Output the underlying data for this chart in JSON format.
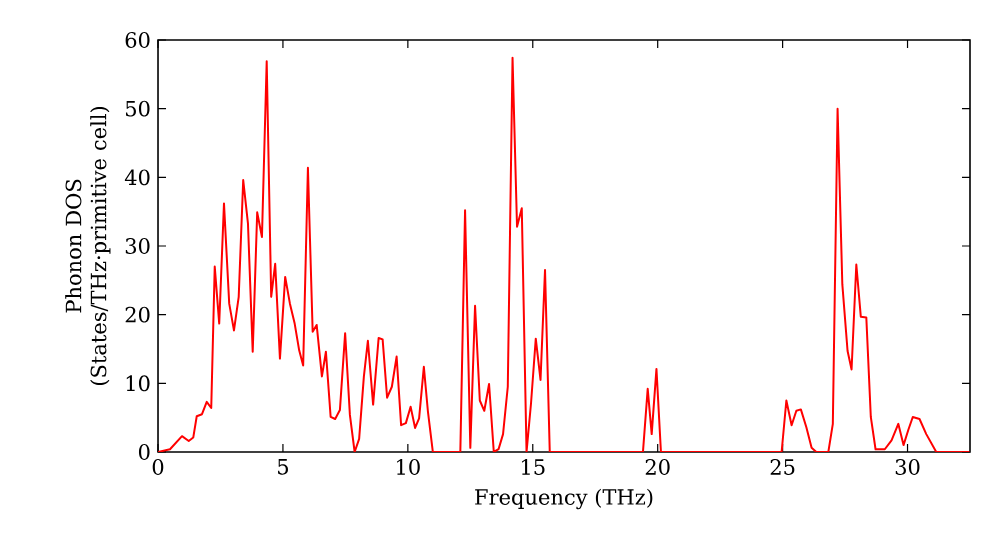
{
  "chart_data": {
    "type": "line",
    "xlabel": "Frequency (THz)",
    "ylabel": "Phonon DOS\n(States/THz·primitive cell)",
    "xlim": [
      0,
      32.5
    ],
    "ylim": [
      0,
      60
    ],
    "xticks": [
      0,
      5,
      10,
      15,
      20,
      25,
      30
    ],
    "yticks": [
      0,
      10,
      20,
      30,
      40,
      50,
      60
    ],
    "grid": false,
    "series": [
      {
        "color": "#ff0000",
        "x": [
          0,
          0.48,
          0.96,
          1.23,
          1.41,
          1.55,
          1.76,
          1.95,
          2.13,
          2.27,
          2.45,
          2.64,
          2.85,
          3.04,
          3.23,
          3.41,
          3.6,
          3.79,
          3.97,
          4.16,
          4.35,
          4.53,
          4.69,
          4.88,
          5.09,
          5.28,
          5.47,
          5.65,
          5.81,
          6.0,
          6.19,
          6.35,
          6.56,
          6.72,
          6.91,
          7.09,
          7.28,
          7.49,
          7.68,
          7.87,
          8.05,
          8.24,
          8.4,
          8.61,
          8.83,
          8.99,
          9.17,
          9.36,
          9.55,
          9.73,
          9.92,
          10.11,
          10.29,
          10.45,
          10.64,
          10.8,
          11.0,
          12.1,
          12.29,
          12.5,
          12.69,
          12.88,
          13.06,
          13.25,
          13.44,
          13.63,
          13.81,
          14.0,
          14.19,
          14.37,
          14.56,
          14.75,
          14.93,
          15.12,
          15.31,
          15.49,
          15.68,
          19.41,
          19.6,
          19.76,
          19.95,
          20.13,
          24.96,
          25.15,
          25.36,
          25.55,
          25.73,
          25.95,
          26.16,
          26.35,
          26.83,
          27.01,
          27.2,
          27.39,
          27.6,
          27.76,
          27.95,
          28.13,
          28.35,
          28.53,
          28.72,
          29.09,
          29.36,
          29.63,
          29.84,
          30.03,
          30.21,
          30.48,
          30.75,
          31.15,
          32.48
        ],
        "values": [
          0,
          0.4,
          2.3,
          1.6,
          2.1,
          5.2,
          5.5,
          7.3,
          6.4,
          27,
          18.7,
          36.2,
          21.6,
          17.7,
          22.6,
          39.6,
          33.3,
          14.6,
          34.9,
          31.3,
          56.9,
          22.6,
          27.4,
          13.6,
          25.5,
          21.6,
          18.7,
          14.8,
          12.6,
          41.4,
          17.5,
          18.5,
          11,
          14.6,
          5.1,
          4.8,
          6.1,
          17.3,
          5.4,
          0,
          1.9,
          11,
          16.2,
          6.9,
          16.6,
          16.4,
          7.9,
          9.5,
          13.9,
          3.9,
          4.2,
          6.6,
          3.5,
          4.9,
          12.4,
          6,
          0,
          0,
          35.2,
          0.6,
          21.3,
          7.5,
          6,
          9.9,
          0,
          0.4,
          2.6,
          9.5,
          57.4,
          32.8,
          35.5,
          0,
          7.1,
          16.5,
          10.5,
          26.5,
          0,
          0,
          9.2,
          2.6,
          12.1,
          0,
          0,
          7.5,
          3.9,
          6,
          6.2,
          3.6,
          0.6,
          0,
          0,
          4.1,
          50,
          24.4,
          14.7,
          12,
          27.3,
          19.7,
          19.6,
          5.1,
          0.4,
          0.4,
          1.7,
          4.1,
          1,
          3.2,
          5.1,
          4.8,
          2.6,
          0,
          0
        ]
      }
    ]
  }
}
